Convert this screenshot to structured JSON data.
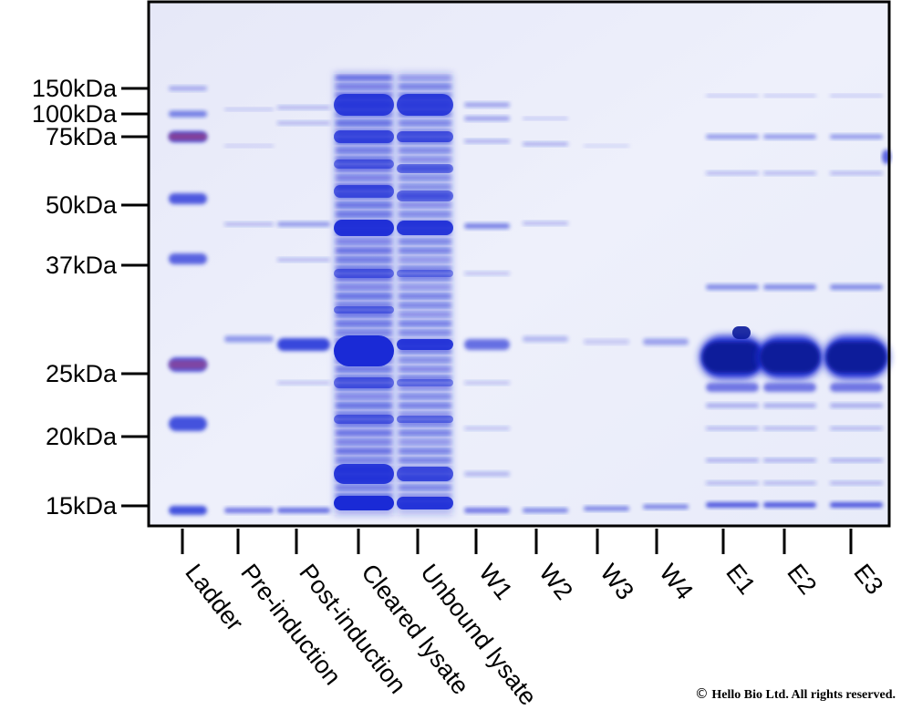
{
  "figure": {
    "type": "sds-page-gel",
    "molecular_weight_markers": [
      "150kDa",
      "100kDa",
      "75kDa",
      "50kDa",
      "37kDa",
      "25kDa",
      "20kDa",
      "15kDa"
    ],
    "lanes": [
      "Ladder",
      "Pre-induction",
      "Post-induction",
      "Cleared lysate",
      "Unbound lysate",
      "W1",
      "W2",
      "W3",
      "W4",
      "E1",
      "E2",
      "E3"
    ],
    "stain_color": "#1a2ad6",
    "background_color": "#ebeefa"
  },
  "copyright": {
    "symbol": "©",
    "text": "Hello Bio Ltd. All rights reserved."
  }
}
